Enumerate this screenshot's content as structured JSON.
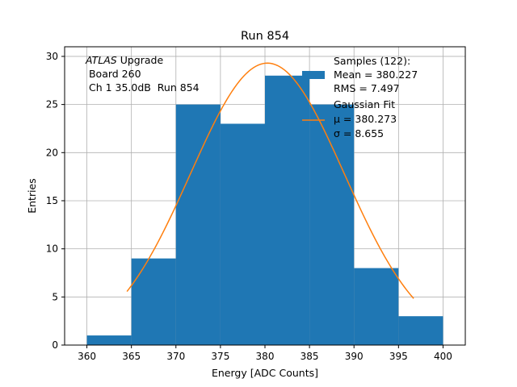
{
  "chart_data": {
    "type": "bar",
    "title": "Run 854",
    "xlabel": "Energy [ADC Counts]",
    "ylabel": "Entries",
    "xlim": [
      357.5,
      402.5
    ],
    "ylim": [
      0,
      31
    ],
    "xticks": [
      360,
      365,
      370,
      375,
      380,
      385,
      390,
      395,
      400
    ],
    "yticks": [
      0,
      5,
      10,
      15,
      20,
      25,
      30
    ],
    "grid": true,
    "bin_edges": [
      360,
      365,
      370,
      375,
      380,
      385,
      390,
      395,
      400
    ],
    "values": [
      1,
      9,
      25,
      23,
      28,
      25,
      8,
      3
    ],
    "series": [
      {
        "name": "Samples (122):",
        "kind": "histogram",
        "color": "#1f77b4"
      },
      {
        "name": "Gaussian Fit",
        "kind": "line",
        "color": "#ff7f0e"
      }
    ],
    "fit": {
      "mu": 380.273,
      "sigma": 8.655,
      "peak": 29.3,
      "x_range": [
        364.5,
        396.7
      ]
    },
    "annotation": {
      "lines": [
        "ATLAS Upgrade",
        " Board 260",
        " Ch 1 35.0dB  Run 854"
      ],
      "italic_word": "ATLAS"
    },
    "legend": {
      "position": "top-right",
      "samples_lines": [
        "Samples (122):",
        "Mean = 380.227",
        "RMS = 7.497"
      ],
      "fit_lines": [
        "Gaussian Fit",
        "μ = 380.273",
        "σ = 8.655"
      ]
    }
  }
}
